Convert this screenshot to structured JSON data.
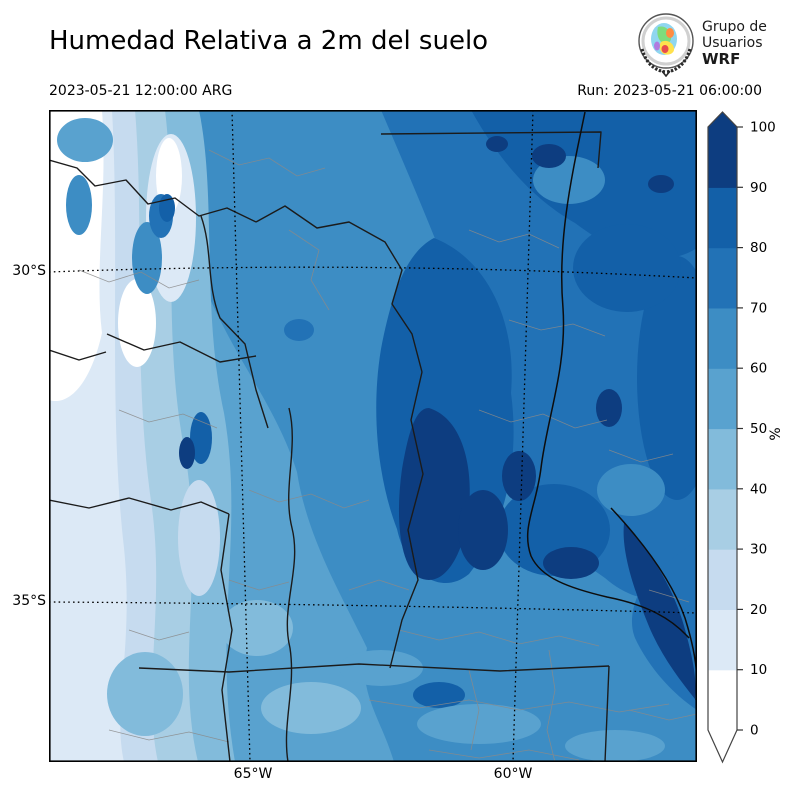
{
  "header": {
    "title": "Humedad Relativa a 2m del suelo",
    "valid_time": "2023-05-21 12:00:00 ARG",
    "run_label": "Run: 2023-05-21 06:00:00",
    "logo": {
      "line1": "Grupo de",
      "line2": "Usuarios",
      "line3": "WRF"
    }
  },
  "map": {
    "lat_labels": [
      "30°S",
      "35°S"
    ],
    "lon_labels": [
      "65°W",
      "60°W"
    ]
  },
  "colorbar": {
    "unit": "%",
    "tick_values": [
      0,
      10,
      20,
      30,
      40,
      50,
      60,
      70,
      80,
      90,
      100
    ],
    "colors": [
      "#ffffff",
      "#dce9f6",
      "#c6dbef",
      "#a8cee4",
      "#82bbdb",
      "#59a2cf",
      "#3d8dc4",
      "#2272b6",
      "#1360a8",
      "#0d3d80"
    ]
  }
}
